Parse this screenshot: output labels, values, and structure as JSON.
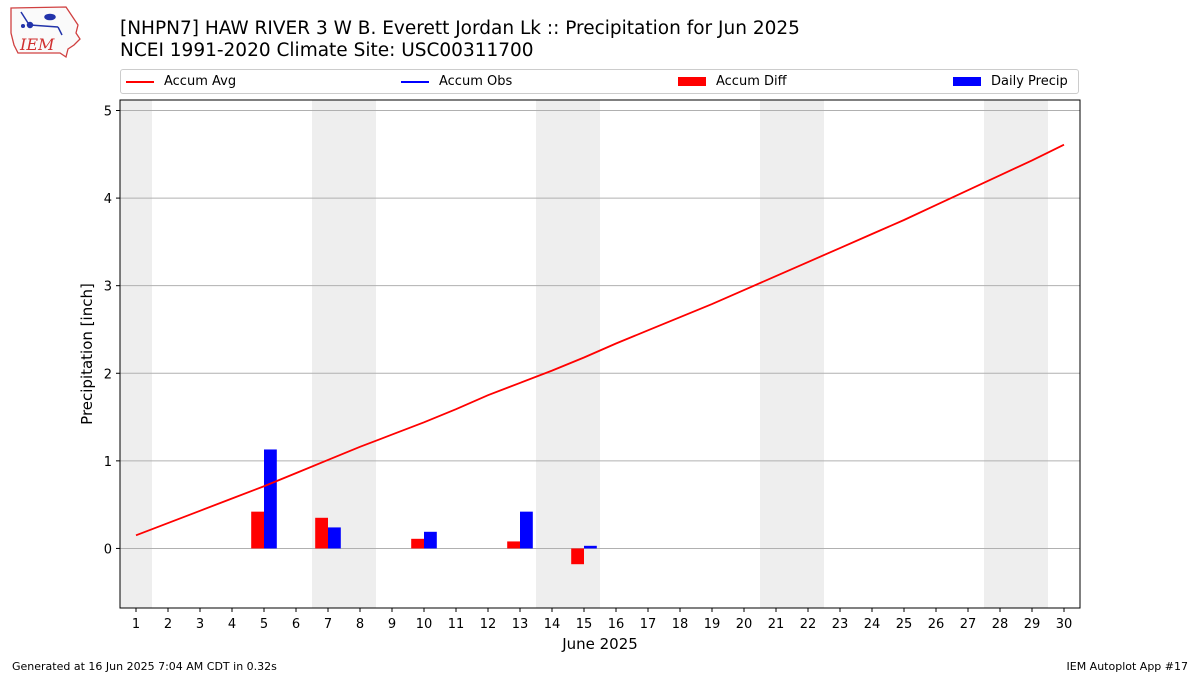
{
  "header": {
    "logo_text": "IEM",
    "title_line1": "[NHPN7] HAW RIVER 3 W B. Everett Jordan Lk :: Precipitation for Jun 2025",
    "title_line2": "NCEI 1991-2020 Climate Site: USC00311700"
  },
  "legend": [
    {
      "label": "Accum Avg",
      "kind": "line",
      "color": "#ff0000"
    },
    {
      "label": "Accum Obs",
      "kind": "line",
      "color": "#0000ff"
    },
    {
      "label": "Accum Diff",
      "kind": "bar",
      "color": "#ff0000"
    },
    {
      "label": "Daily Precip",
      "kind": "bar",
      "color": "#0000ff"
    }
  ],
  "footer": {
    "left": "Generated at 16 Jun 2025 7:04 AM CDT in 0.32s",
    "right": "IEM Autoplot App #17"
  },
  "chart_data": {
    "type": "bar",
    "xlabel": "June 2025",
    "ylabel": "Precipitation [inch]",
    "xlim": [
      0.5,
      30.5
    ],
    "ylim": [
      -0.68,
      5.12
    ],
    "x_ticks": [
      1,
      2,
      3,
      4,
      5,
      6,
      7,
      8,
      9,
      10,
      11,
      12,
      13,
      14,
      15,
      16,
      17,
      18,
      19,
      20,
      21,
      22,
      23,
      24,
      25,
      26,
      27,
      28,
      29,
      30
    ],
    "y_ticks": [
      0,
      1,
      2,
      3,
      4,
      5
    ],
    "grid": "horizontal",
    "legend_position": "top",
    "weekend_bands": [
      [
        0.5,
        1.5
      ],
      [
        6.5,
        8.5
      ],
      [
        13.5,
        15.5
      ],
      [
        20.5,
        22.5
      ],
      [
        27.5,
        29.5
      ]
    ],
    "accum_avg": {
      "name": "Accum Avg",
      "color": "#ff0000",
      "x": [
        1,
        2,
        3,
        4,
        5,
        6,
        7,
        8,
        9,
        10,
        11,
        12,
        13,
        14,
        15,
        16,
        17,
        18,
        19,
        20,
        21,
        22,
        23,
        24,
        25,
        26,
        27,
        28,
        29,
        30
      ],
      "values": [
        0.15,
        0.29,
        0.43,
        0.57,
        0.71,
        0.86,
        1.01,
        1.16,
        1.3,
        1.44,
        1.59,
        1.75,
        1.89,
        2.03,
        2.18,
        2.34,
        2.49,
        2.64,
        2.79,
        2.95,
        3.11,
        3.27,
        3.43,
        3.59,
        3.75,
        3.92,
        4.09,
        4.26,
        4.43,
        4.61
      ]
    },
    "accum_diff": {
      "name": "Accum Diff",
      "color": "#ff0000",
      "x": [
        5,
        7,
        10,
        13,
        15
      ],
      "values": [
        0.42,
        0.35,
        0.11,
        0.08,
        -0.18
      ]
    },
    "daily_precip": {
      "name": "Daily Precip",
      "color": "#0000ff",
      "x": [
        5,
        7,
        10,
        13,
        15
      ],
      "values": [
        1.13,
        0.24,
        0.19,
        0.42,
        0.03
      ]
    }
  }
}
